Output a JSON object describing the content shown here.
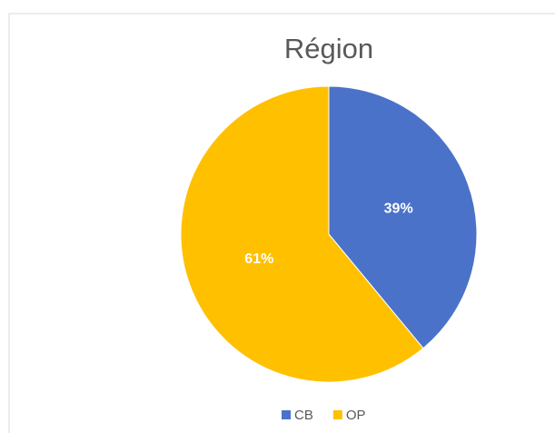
{
  "chart_data": {
    "type": "pie",
    "title": "Région",
    "categories": [
      "CB",
      "OP"
    ],
    "values": [
      39,
      61
    ],
    "value_labels": [
      "39%",
      "61%"
    ],
    "colors": [
      "#4a72c8",
      "#ffc000"
    ],
    "legend": "bottom"
  }
}
